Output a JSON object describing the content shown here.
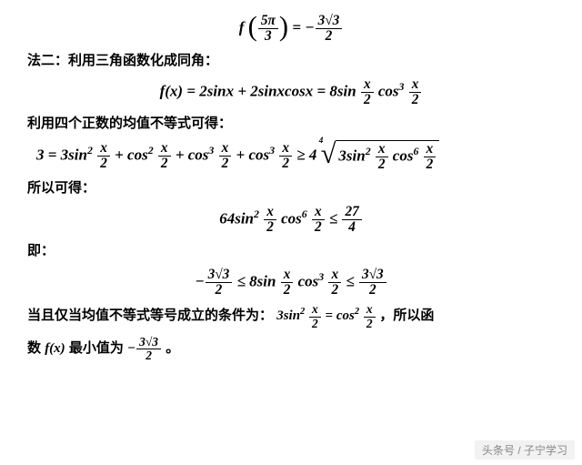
{
  "eq1_lhs_fn": "f",
  "eq1_arg_num": "5π",
  "eq1_arg_den": "3",
  "eq1_rhs_num": "3√3",
  "eq1_rhs_den": "2",
  "text_method2": "法二：利用三角函数化成同角：",
  "eq2": "f(x) = 2sinx + 2sinxcosx = 8sin",
  "eq2_f1_num": "x",
  "eq2_f1_den": "2",
  "eq2_cos": "cos",
  "eq2_f2_num": "x",
  "eq2_f2_den": "2",
  "text_amgm": "利用四个正数的均值不等式可得：",
  "eq3_pre": "3 = 3sin",
  "eq3_f_num": "x",
  "eq3_f_den": "2",
  "eq3_plus": " + cos",
  "eq3_ge": " ≥ 4",
  "eq3_rad_a": "3sin",
  "eq3_rad_b": "cos",
  "text_so": "所以可得：",
  "eq4_a": "64sin",
  "eq4_b": "cos",
  "eq4_rhs_num": "27",
  "eq4_rhs_den": "4",
  "text_ie": "即：",
  "eq5_l_num": "3√3",
  "eq5_l_den": "2",
  "eq5_mid": " ≤ 8sin",
  "eq5_cos": "cos",
  "eq5_r_num": "3√3",
  "eq5_r_den": "2",
  "text_cond_a": "当且仅当均值不等式等号成立的条件为：",
  "cond_lhs": "3sin",
  "cond_rhs": "cos",
  "text_cond_b": "，所以函",
  "text_last_a": "数",
  "text_last_fn": "f(x)",
  "text_last_b": "最小值为",
  "min_num": "3√3",
  "min_den": "2",
  "text_last_c": "。",
  "watermark": "头条号 / 子宁学习"
}
